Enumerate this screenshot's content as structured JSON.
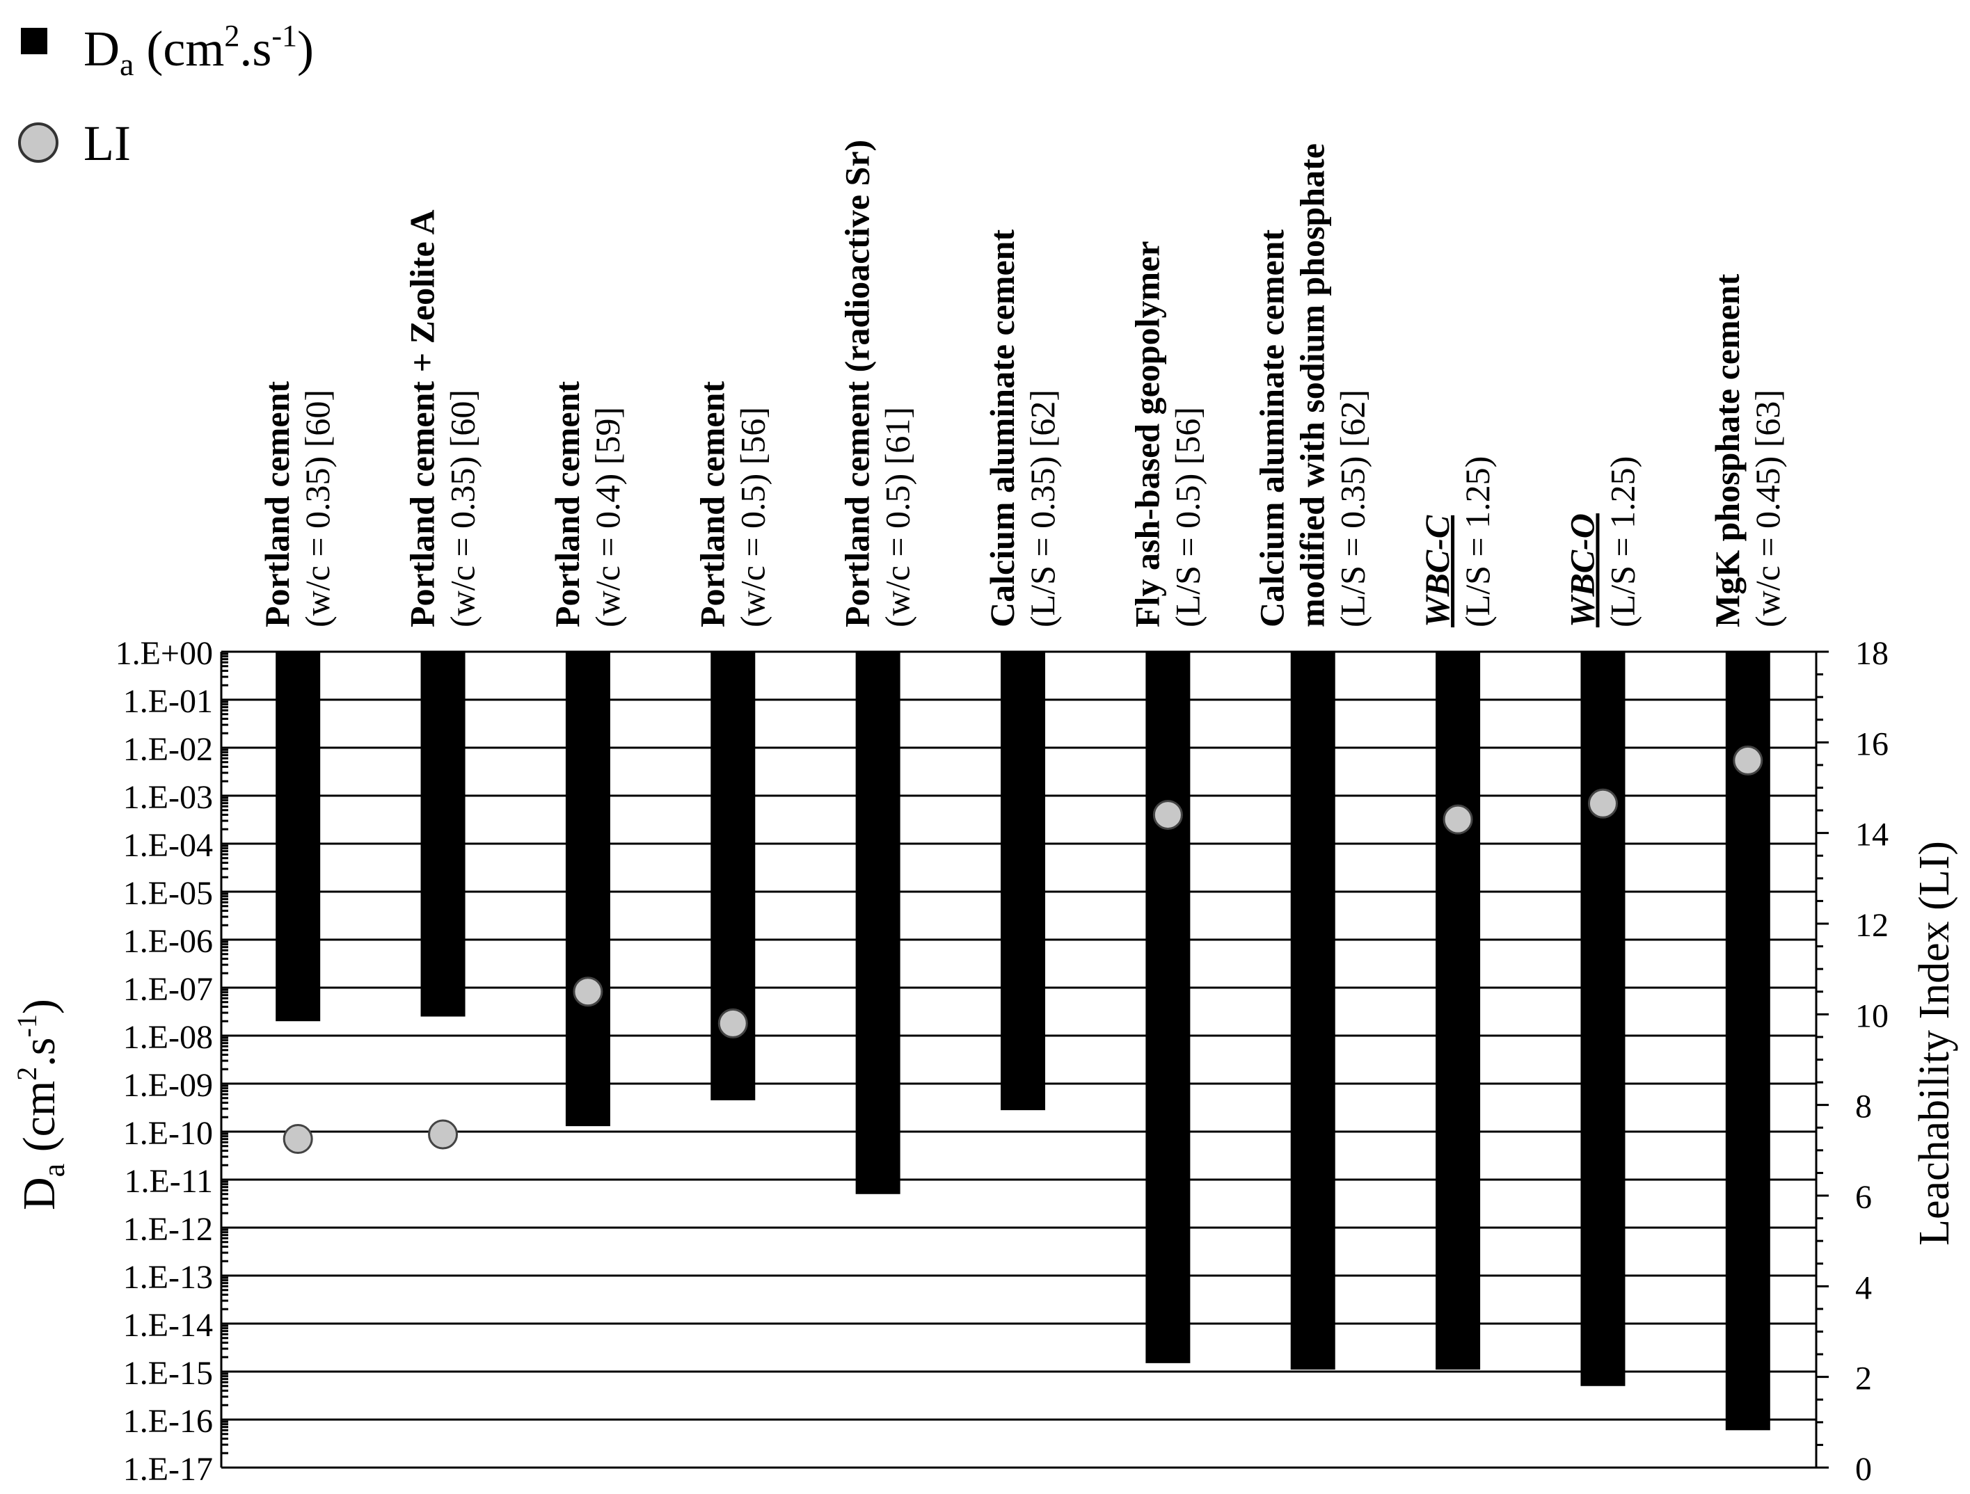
{
  "legend": {
    "da": {
      "label": "D",
      "sub": "a",
      "rest": " (cm",
      "sup1": "2",
      "mid": ".s",
      "sup2": "-1",
      "end": ")"
    },
    "li": {
      "label": "LI"
    }
  },
  "axes": {
    "left": {
      "label_main": "D",
      "label_sub": "a",
      "label_rest": " (cm",
      "label_sup1": "2",
      "label_mid": ".s",
      "label_sup2": "-1",
      "label_end": ")",
      "ticks": [
        "1.E+00",
        "1.E-01",
        "1.E-02",
        "1.E-03",
        "1.E-04",
        "1.E-05",
        "1.E-06",
        "1.E-07",
        "1.E-08",
        "1.E-09",
        "1.E-10",
        "1.E-11",
        "1.E-12",
        "1.E-13",
        "1.E-14",
        "1.E-15",
        "1.E-16",
        "1.E-17"
      ]
    },
    "right": {
      "label": "Leachability Index (LI)",
      "ticks": [
        "0",
        "2",
        "4",
        "6",
        "8",
        "10",
        "12",
        "14",
        "16",
        "18"
      ]
    }
  },
  "chart_data": {
    "type": "bar",
    "y_scale_left": "log",
    "ylim_left": [
      1e-17,
      1
    ],
    "ylim_right": [
      0,
      18
    ],
    "grid": true,
    "legend_position": "top-left",
    "categories": [
      {
        "bold": "Portland cement",
        "normal": "(w/c = 0.35) [60]"
      },
      {
        "bold": "Portland cement + Zeolite A",
        "normal": "(w/c = 0.35) [60]"
      },
      {
        "bold": "Portland cement",
        "normal": "(w/c = 0.4) [59]"
      },
      {
        "bold": "Portland cement",
        "normal": "(w/c = 0.5) [56]"
      },
      {
        "bold": "Portland cement (radioactive Sr)",
        "normal": "(w/c = 0.5) [61]"
      },
      {
        "bold": "Calcium aluminate cement",
        "normal": "(L/S = 0.35) [62]"
      },
      {
        "bold": "Fly ash-based geopolymer",
        "normal": "(L/S = 0.5) [56]"
      },
      {
        "bold": "Calcium aluminate cement",
        "bold2": "modified with sodium phosphate",
        "normal": "(L/S = 0.35) [62]"
      },
      {
        "bold": "WBC-C",
        "normal": "(L/S = 1.25)",
        "italic_underline": true
      },
      {
        "bold": "WBC-O",
        "normal": "(L/S = 1.25)",
        "italic_underline": true
      },
      {
        "bold": "MgK phosphate cement",
        "normal": "(w/c = 0.45) [63]"
      }
    ],
    "series": [
      {
        "name": "Da (cm2.s-1)",
        "axis": "left",
        "values": [
          2e-08,
          2.5e-08,
          1.3e-10,
          4.5e-10,
          5e-12,
          2.8e-10,
          1.5e-15,
          1.1e-15,
          1.1e-15,
          5e-16,
          6e-17
        ]
      },
      {
        "name": "LI",
        "axis": "right",
        "values": [
          null,
          null,
          null,
          null,
          null,
          null,
          null,
          null,
          null,
          null,
          null
        ]
      }
    ],
    "li_points": [
      {
        "category_index": 0,
        "value": 7.25
      },
      {
        "category_index": 1,
        "value": 7.35
      },
      {
        "category_index": 2,
        "value": 10.5
      },
      {
        "category_index": 3,
        "value": 9.8
      },
      {
        "category_index": 6,
        "value": 14.4
      },
      {
        "category_index": 8,
        "value": 14.3
      },
      {
        "category_index": 9,
        "value": 14.65
      },
      {
        "category_index": 10,
        "value": 15.6
      }
    ]
  }
}
